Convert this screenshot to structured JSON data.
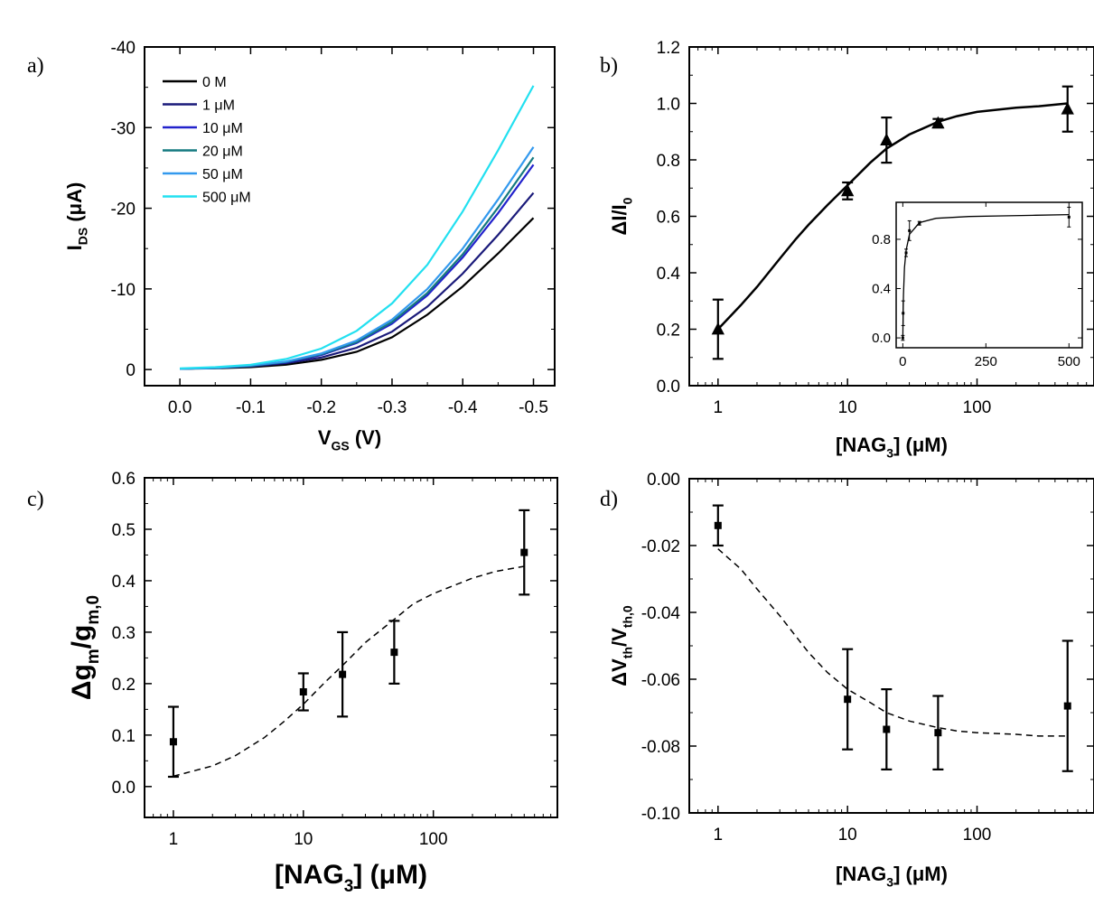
{
  "panels": {
    "a": {
      "letter": "a)"
    },
    "b": {
      "letter": "b)"
    },
    "c": {
      "letter": "c)"
    },
    "d": {
      "letter": "d)"
    }
  },
  "chart_data": [
    {
      "id": "a",
      "type": "line",
      "xlabel": {
        "main": "V",
        "sub": "GS",
        "rest": " (V)"
      },
      "ylabel": {
        "main": "I",
        "sub": "DS",
        "rest": " (μA)"
      },
      "xlim": [
        0.05,
        -0.53
      ],
      "ylim": [
        2,
        -40
      ],
      "xticks": [
        0.0,
        -0.1,
        -0.2,
        -0.3,
        -0.4,
        -0.5
      ],
      "xtick_labels": [
        "0.0",
        "-0.1",
        "-0.2",
        "-0.3",
        "-0.4",
        "-0.5"
      ],
      "yticks": [
        0,
        -10,
        -20,
        -30,
        -40
      ],
      "ytick_labels": [
        "0",
        "-10",
        "-20",
        "-30",
        "-40"
      ],
      "legend_position": "top-left",
      "x": [
        0.0,
        -0.05,
        -0.1,
        -0.15,
        -0.2,
        -0.25,
        -0.3,
        -0.35,
        -0.4,
        -0.45,
        -0.5
      ],
      "series": [
        {
          "name": "0 M",
          "color": "#000000",
          "values": [
            -0.1,
            -0.15,
            -0.3,
            -0.6,
            -1.2,
            -2.2,
            -4.0,
            -6.8,
            -10.3,
            -14.4,
            -18.8
          ]
        },
        {
          "name": "1 μM",
          "color": "#1a1a7a",
          "values": [
            -0.1,
            -0.2,
            -0.4,
            -0.8,
            -1.5,
            -2.7,
            -4.7,
            -7.8,
            -11.9,
            -16.7,
            -21.9
          ]
        },
        {
          "name": "10 μM",
          "color": "#2222cc",
          "values": [
            -0.1,
            -0.2,
            -0.45,
            -0.9,
            -1.8,
            -3.3,
            -5.7,
            -9.2,
            -13.9,
            -19.4,
            -25.4
          ]
        },
        {
          "name": "20 μM",
          "color": "#157a80",
          "values": [
            -0.1,
            -0.2,
            -0.45,
            -0.95,
            -1.9,
            -3.4,
            -5.9,
            -9.5,
            -14.3,
            -20.1,
            -26.3
          ]
        },
        {
          "name": "50 μM",
          "color": "#3399ee",
          "values": [
            -0.1,
            -0.2,
            -0.5,
            -1.0,
            -2.0,
            -3.6,
            -6.2,
            -10.0,
            -15.0,
            -21.1,
            -27.6
          ]
        },
        {
          "name": "500 μM",
          "color": "#22e0f0",
          "values": [
            -0.15,
            -0.3,
            -0.6,
            -1.3,
            -2.6,
            -4.8,
            -8.2,
            -13.0,
            -19.6,
            -27.2,
            -35.2
          ]
        }
      ]
    },
    {
      "id": "b",
      "type": "scatter",
      "xlabel": {
        "main": "[NAG",
        "sub": "3",
        "rest": "] (μM)"
      },
      "ylabel": {
        "main": "ΔI/I",
        "sub": "0",
        "rest": ""
      },
      "xscale": "log",
      "xlim": [
        0.6,
        800
      ],
      "ylim": [
        0.0,
        1.2
      ],
      "xticks": [
        1,
        10,
        100
      ],
      "xtick_labels": [
        "1",
        "10",
        "100"
      ],
      "yticks": [
        0.0,
        0.2,
        0.4,
        0.6,
        0.8,
        1.0,
        1.2
      ],
      "ytick_labels": [
        "0.0",
        "0.2",
        "0.4",
        "0.6",
        "0.8",
        "1.0",
        "1.2"
      ],
      "marker": "triangle",
      "points": [
        {
          "x": 1,
          "y": 0.2,
          "err": 0.105
        },
        {
          "x": 10,
          "y": 0.69,
          "err": 0.03
        },
        {
          "x": 20,
          "y": 0.87,
          "err": 0.08
        },
        {
          "x": 50,
          "y": 0.93,
          "err": 0.015
        },
        {
          "x": 500,
          "y": 0.98,
          "err": 0.08
        }
      ],
      "fit": {
        "style": "solid",
        "x": [
          1,
          1.5,
          2,
          3,
          4,
          5,
          7,
          10,
          15,
          20,
          30,
          50,
          70,
          100,
          200,
          300,
          500
        ],
        "y": [
          0.2,
          0.285,
          0.35,
          0.45,
          0.52,
          0.57,
          0.64,
          0.71,
          0.79,
          0.84,
          0.89,
          0.935,
          0.955,
          0.97,
          0.985,
          0.99,
          1.0
        ]
      },
      "inset": {
        "xlim": [
          -20,
          540
        ],
        "ylim": [
          -0.08,
          1.1
        ],
        "xticks": [
          0,
          250,
          500
        ],
        "xtick_labels": [
          "0",
          "250",
          "500"
        ],
        "yticks": [
          0.0,
          0.4,
          0.8
        ],
        "ytick_labels": [
          "0.0",
          "0.4",
          "0.8"
        ],
        "points": [
          {
            "x": 0,
            "y": 0.0,
            "err": 0.02
          },
          {
            "x": 1,
            "y": 0.2,
            "err": 0.1
          },
          {
            "x": 10,
            "y": 0.69,
            "err": 0.03
          },
          {
            "x": 20,
            "y": 0.87,
            "err": 0.08
          },
          {
            "x": 50,
            "y": 0.93,
            "err": 0.015
          },
          {
            "x": 500,
            "y": 0.98,
            "err": 0.08
          }
        ],
        "fit": {
          "x": [
            0,
            1,
            2,
            5,
            10,
            20,
            50,
            100,
            200,
            300,
            400,
            500
          ],
          "y": [
            0.0,
            0.2,
            0.35,
            0.57,
            0.71,
            0.84,
            0.935,
            0.97,
            0.985,
            0.99,
            0.995,
            1.0
          ]
        }
      }
    },
    {
      "id": "c",
      "type": "scatter",
      "xlabel": {
        "main": "[NAG",
        "sub": "3",
        "rest": "] (μM)"
      },
      "ylabel": {
        "main": "Δg",
        "sub": "m",
        "rest": "/g",
        "sub2": "m,0"
      },
      "xscale": "log",
      "xlim": [
        0.6,
        900
      ],
      "ylim": [
        -0.06,
        0.6
      ],
      "xticks": [
        1,
        10,
        100
      ],
      "xtick_labels": [
        "1",
        "10",
        "100"
      ],
      "yticks": [
        0.0,
        0.1,
        0.2,
        0.3,
        0.4,
        0.5,
        0.6
      ],
      "ytick_labels": [
        "0.0",
        "0.1",
        "0.2",
        "0.3",
        "0.4",
        "0.5",
        "0.6"
      ],
      "marker": "square",
      "points": [
        {
          "x": 1,
          "y": 0.087,
          "err": 0.068
        },
        {
          "x": 10,
          "y": 0.184,
          "err": 0.036
        },
        {
          "x": 20,
          "y": 0.218,
          "err": 0.082
        },
        {
          "x": 50,
          "y": 0.261,
          "err": 0.061
        },
        {
          "x": 500,
          "y": 0.455,
          "err": 0.082
        }
      ],
      "fit": {
        "style": "dashed",
        "x": [
          1,
          2,
          3,
          5,
          7,
          10,
          15,
          20,
          30,
          50,
          70,
          100,
          200,
          300,
          500
        ],
        "y": [
          0.02,
          0.04,
          0.06,
          0.095,
          0.125,
          0.16,
          0.205,
          0.235,
          0.28,
          0.325,
          0.355,
          0.375,
          0.405,
          0.418,
          0.428
        ]
      }
    },
    {
      "id": "d",
      "type": "scatter",
      "xlabel": {
        "main": "[NAG",
        "sub": "3",
        "rest": "] (μM)"
      },
      "ylabel": {
        "main": "ΔV",
        "sub": "th",
        "rest": "/V",
        "sub2": "th,0"
      },
      "xscale": "log",
      "xlim": [
        0.6,
        800
      ],
      "ylim": [
        -0.1,
        0.0
      ],
      "xticks": [
        1,
        10,
        100
      ],
      "xtick_labels": [
        "1",
        "10",
        "100"
      ],
      "yticks": [
        0.0,
        -0.02,
        -0.04,
        -0.06,
        -0.08,
        -0.1
      ],
      "ytick_labels": [
        "0.00",
        "-0.02",
        "-0.04",
        "-0.06",
        "-0.08",
        "-0.10"
      ],
      "marker": "square",
      "points": [
        {
          "x": 1,
          "y": -0.014,
          "err": 0.006
        },
        {
          "x": 10,
          "y": -0.066,
          "err": 0.015
        },
        {
          "x": 20,
          "y": -0.075,
          "err": 0.012
        },
        {
          "x": 50,
          "y": -0.076,
          "err": 0.011
        },
        {
          "x": 500,
          "y": -0.068,
          "err": 0.0195
        }
      ],
      "fit": {
        "style": "dashed",
        "x": [
          1,
          1.5,
          2,
          3,
          5,
          7,
          10,
          15,
          20,
          30,
          50,
          70,
          100,
          200,
          300,
          500
        ],
        "y": [
          -0.021,
          -0.027,
          -0.033,
          -0.041,
          -0.052,
          -0.058,
          -0.063,
          -0.067,
          -0.07,
          -0.0725,
          -0.0745,
          -0.0755,
          -0.076,
          -0.0765,
          -0.077,
          -0.077
        ]
      }
    }
  ]
}
